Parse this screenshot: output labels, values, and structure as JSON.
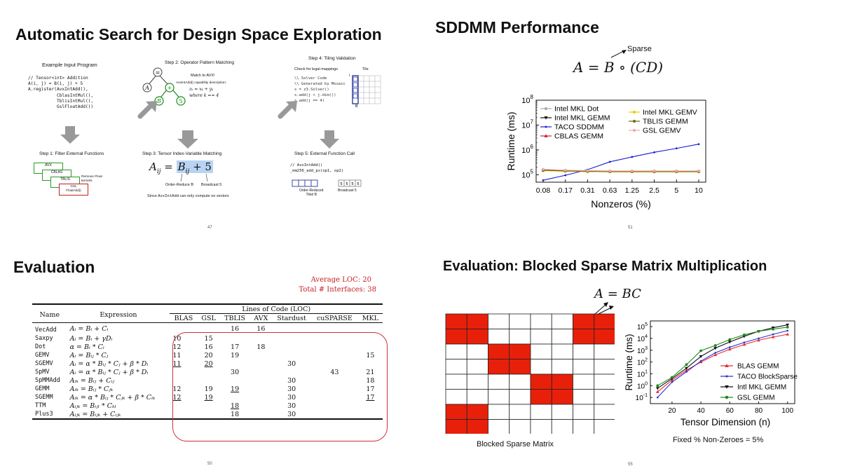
{
  "slide1": {
    "title": "Automatic Search for Design Space Exploration",
    "input_program_title": "Example Input Program",
    "input_code": [
      "// Tensor<int> Addition",
      "A(i, j) = B(i, j) + 5",
      "A.register(AvxIntAdd(),",
      "           CblasIntMul(),",
      "           TblisIntMul(),",
      "           GslFloatAdd())"
    ],
    "step1": "Step 1: Filter External Functions",
    "step1_boxes": [
      "AVX",
      "CBLAS",
      "TBLIS",
      "GSL\nFloatAdd()"
    ],
    "step1_note": "Remove Float\nkernels",
    "step2": "Step 2: Operator Pattern Matching",
    "step2_nodes": [
      "=",
      "A",
      "+",
      "B",
      "5"
    ],
    "step2_match": "Match to AVX!",
    "step2_desc": "AvxIntAdd() capability description:",
    "step2_eq1": "zₖ = xₖ + yₖ",
    "step2_eq2": "where k == 4",
    "step3": "Step 3: Tensor Index-Variable Matching",
    "step3_eq_lhs": "A",
    "step3_eq_lhs_sub": "ij",
    "step3_eq_mid": " = ",
    "step3_eq_rhs": "B",
    "step3_eq_rhs_sub": "ij",
    "step3_eq_tail": " + 5",
    "step3_reduce": "Order-Reduce B",
    "step3_broadcast": "Broadcast 5",
    "step3_note_pre": "Since ",
    "step3_note_code": "AvxIntAdd",
    "step3_note_post": " can only compute on vectors",
    "step4": "Step 4: Tiling Validation",
    "step4_check": "Check for legal mappings",
    "step4_code": [
      "\\\\ Solver Code",
      "\\\\ Generated by Mosaic",
      "s = z3.Solver()",
      "s.add(j < j.dim())",
      "s.add(j == 4)"
    ],
    "step4_tile": "Tile",
    "step4_i": "i",
    "step4_b": "B",
    "step5": "Step 5: External Function Call",
    "step5_code": [
      "// AvxIntAdd()",
      "_mm256_add_ps(op1, op2)"
    ],
    "step5_reduced": "Order-Reduced\nTiled B",
    "step5_broadcast": "Broadcast 5",
    "step5_cells": [
      "5",
      "5",
      "5",
      "5"
    ],
    "page": "47"
  },
  "slide2": {
    "title": "SDDMM Performance",
    "sparse": "Sparse",
    "eq": "A = B ∘ (CD)",
    "page": "51",
    "chart_data": {
      "type": "line",
      "title": "",
      "xlabel": "Nonzeros (%)",
      "ylabel": "Runtime (ms)",
      "x_scale": "categorical",
      "y_scale": "log",
      "ylim": [
        50000,
        100000000
      ],
      "categories": [
        "0.08",
        "0.17",
        "0.31",
        "0.63",
        "1.25",
        "2.5",
        "5",
        "10"
      ],
      "y_ticks": [
        {
          "v": 100000,
          "base": "10",
          "exp": "5"
        },
        {
          "v": 1000000,
          "base": "10",
          "exp": "6"
        },
        {
          "v": 10000000,
          "base": "10",
          "exp": "7"
        },
        {
          "v": 100000000,
          "base": "10",
          "exp": "8"
        }
      ],
      "series": [
        {
          "name": "Intel MKL Dot",
          "color": "#aaaaaa",
          "marker": "circle",
          "values": [
            160000,
            150000,
            145000,
            140000,
            140000,
            140000,
            140000,
            140000
          ]
        },
        {
          "name": "Intel MKL GEMM",
          "color": "#111111",
          "marker": "triangle-down",
          "values": [
            150000,
            140000,
            135000,
            132000,
            132000,
            132000,
            132000,
            132000
          ]
        },
        {
          "name": "TACO SDDMM",
          "color": "#1a1ad0",
          "marker": "dot",
          "values": [
            60000,
            95000,
            160000,
            330000,
            520000,
            800000,
            1150000,
            1700000
          ]
        },
        {
          "name": "CBLAS GEMM",
          "color": "#d42020",
          "marker": "triangle-up",
          "values": [
            155000,
            145000,
            140000,
            138000,
            138000,
            138000,
            138000,
            138000
          ]
        },
        {
          "name": "Intel MKL GEMV",
          "color": "#e8d000",
          "marker": "circle",
          "values": [
            145000,
            138000,
            134000,
            131000,
            131000,
            131000,
            131000,
            131000
          ]
        },
        {
          "name": "TBLIS GEMM",
          "color": "#6b6b10",
          "marker": "circle",
          "values": [
            150000,
            142000,
            137000,
            134000,
            134000,
            134000,
            134000,
            134000
          ]
        },
        {
          "name": "GSL GEMV",
          "color": "#f0a8b0",
          "marker": "circle",
          "values": [
            165000,
            152000,
            146000,
            142000,
            142000,
            142000,
            142000,
            142000
          ]
        }
      ]
    }
  },
  "slide3": {
    "title": "Evaluation",
    "avg_loc": "Average LOC: 20",
    "total_interfaces": "Total # Interfaces: 38",
    "page": "50",
    "table": {
      "header_group": "Lines of Code (LOC)",
      "col_name": "Name",
      "col_expr": "Expression",
      "cols": [
        "BLAS",
        "GSL",
        "TBLIS",
        "AVX",
        "Stardust",
        "cuSPARSE",
        "MKL"
      ],
      "rows": [
        {
          "name": "VecAdd",
          "expr": "Aᵢ = Bᵢ + Cᵢ",
          "cells": [
            "",
            "",
            "16",
            "16",
            "",
            "",
            ""
          ]
        },
        {
          "name": "Saxpy",
          "expr": "Aᵢ = Bᵢ + γDᵢ",
          "cells": [
            "10",
            "15",
            "",
            "",
            "",
            "",
            ""
          ]
        },
        {
          "name": "Dot",
          "expr": "α = Bᵢ * Cᵢ",
          "cells": [
            "12",
            "16",
            "17",
            "18",
            "",
            "",
            ""
          ]
        },
        {
          "name": "GEMV",
          "expr": "Aᵢ = Bᵢⱼ * Cⱼ",
          "cells": [
            "11",
            "20",
            "19",
            "",
            "",
            "",
            "15"
          ]
        },
        {
          "name": "SGEMV",
          "expr": "Aᵢ = α * Bᵢⱼ * Cⱼ + β * Dᵢ",
          "cells": [
            "11",
            "20",
            "",
            "",
            "30",
            "",
            ""
          ]
        },
        {
          "name": "SpMV",
          "expr": "Aᵢ = α * Bᵢⱼ * Cⱼ + β * Dᵢ",
          "cells": [
            "",
            "",
            "30",
            "",
            "",
            "43",
            "21"
          ]
        },
        {
          "name": "SpMMAdd",
          "expr": "Aᵢₖ = Bᵢⱼ + Cᵢⱼ",
          "cells": [
            "",
            "",
            "",
            "",
            "30",
            "",
            "18"
          ]
        },
        {
          "name": "GEMM",
          "expr": "Aᵢₖ = Bᵢⱼ * Cⱼₖ",
          "cells": [
            "12",
            "19",
            "19",
            "",
            "30",
            "",
            "17"
          ]
        },
        {
          "name": "SGEMM",
          "expr": "Aᵢₖ = α * Bᵢⱼ * Cⱼₖ + β * Cᵢₖ",
          "cells": [
            "12",
            "19",
            "",
            "",
            "30",
            "",
            "17"
          ]
        },
        {
          "name": "TTM",
          "expr": "Aᵢⱼₖ = Bᵢⱼₗ * Cₖₗ",
          "cells": [
            "",
            "",
            "18",
            "",
            "30",
            "",
            ""
          ]
        },
        {
          "name": "Plus3",
          "expr": "Aᵢⱼₖ = Bᵢⱼₖ + Cᵢⱼₖ",
          "cells": [
            "",
            "",
            "18",
            "",
            "30",
            "",
            ""
          ]
        }
      ]
    }
  },
  "slide4": {
    "title": "Evaluation: Blocked Sparse Matrix Multiplication",
    "eq": "A = BC",
    "matrix_label": "Blocked Sparse Matrix",
    "caption": "Fixed % Non-Zeroes = 5%",
    "page": "55",
    "grid_colors": {
      "filled": "#e8200a",
      "empty": "#ffffff"
    },
    "chart_data": {
      "type": "line",
      "title": "",
      "xlabel": "Tensor Dimension (n)",
      "ylabel": "Runtime (ms)",
      "y_scale": "log",
      "xlim": [
        5,
        105
      ],
      "ylim": [
        0.03,
        300000
      ],
      "x_ticks": [
        "20",
        "40",
        "60",
        "80",
        "100"
      ],
      "y_ticks": [
        {
          "v": 0.1,
          "base": "10",
          "exp": "-1"
        },
        {
          "v": 1,
          "base": "10",
          "exp": "0"
        },
        {
          "v": 10,
          "base": "10",
          "exp": "1"
        },
        {
          "v": 100,
          "base": "10",
          "exp": "2"
        },
        {
          "v": 1000,
          "base": "10",
          "exp": "3"
        },
        {
          "v": 10000,
          "base": "10",
          "exp": "4"
        },
        {
          "v": 100000,
          "base": "10",
          "exp": "5"
        }
      ],
      "x": [
        10,
        20,
        30,
        40,
        50,
        60,
        70,
        80,
        90,
        100
      ],
      "series": [
        {
          "name": "BLAS GEMM",
          "color": "#e03030",
          "marker": "triangle-up",
          "values": [
            0.3,
            3,
            20,
            100,
            400,
            1200,
            3000,
            7000,
            13000,
            22000
          ]
        },
        {
          "name": "TACO BlockSparse",
          "color": "#3030d0",
          "marker": "dot",
          "values": [
            0.1,
            2,
            15,
            120,
            600,
            1800,
            4500,
            10000,
            22000,
            45000
          ]
        },
        {
          "name": "Intl MKL GEMM",
          "color": "#111111",
          "marker": "triangle-down",
          "values": [
            0.6,
            4,
            30,
            300,
            1500,
            5000,
            15000,
            40000,
            80000,
            140000
          ]
        },
        {
          "name": "GSL GEMM",
          "color": "#1f8a1f",
          "marker": "circle",
          "values": [
            1,
            5,
            60,
            900,
            2500,
            8000,
            20000,
            40000,
            60000,
            90000
          ]
        }
      ]
    }
  }
}
